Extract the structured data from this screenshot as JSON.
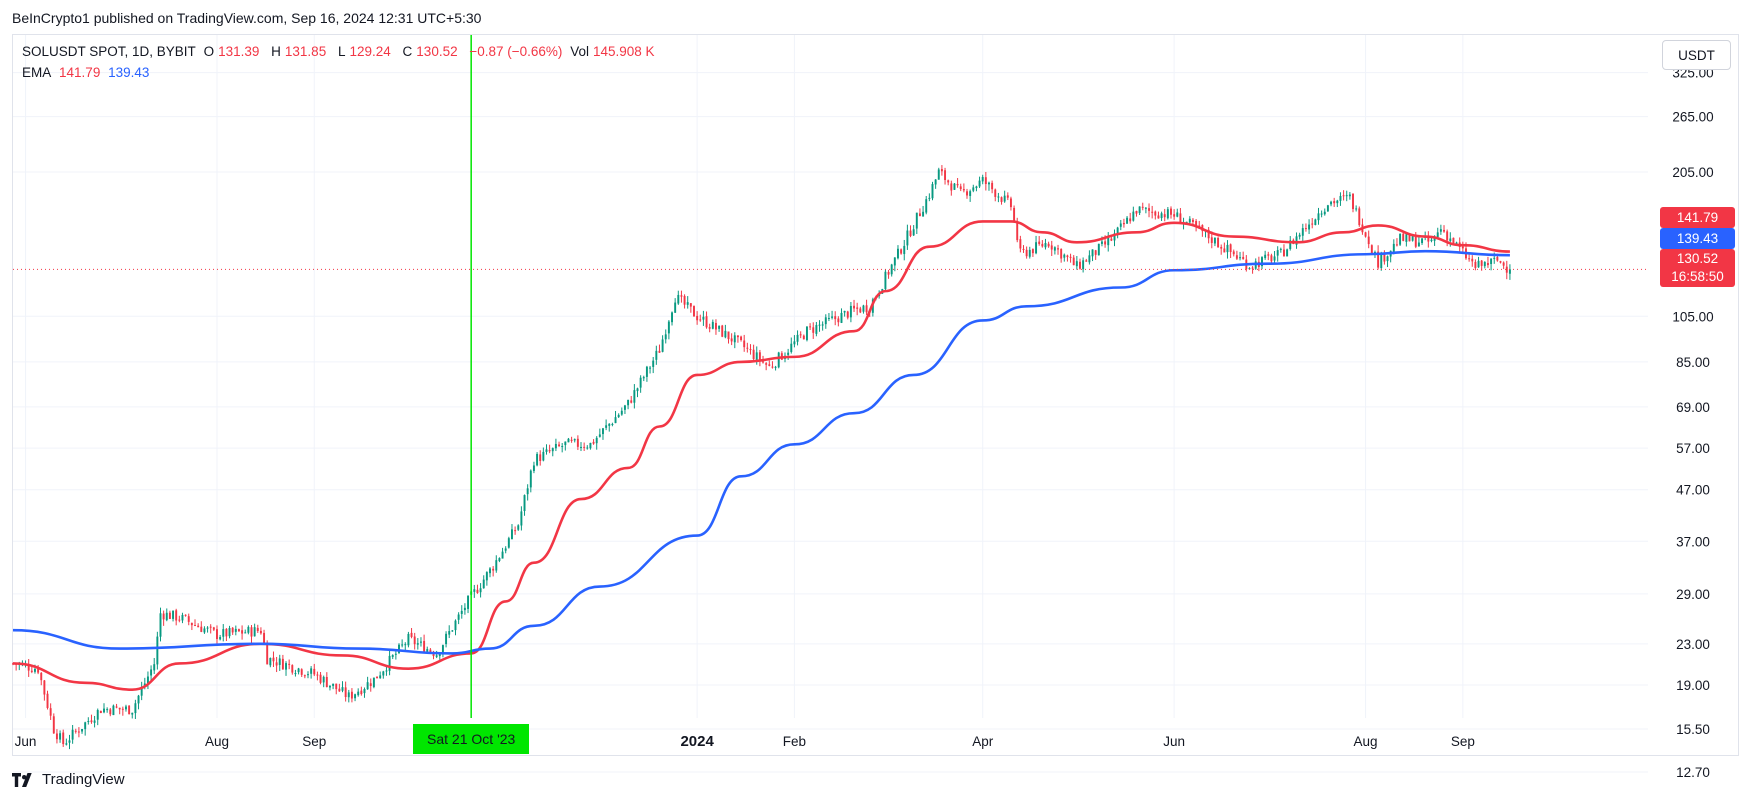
{
  "publisher_line": "BeInCrypto1 published on TradingView.com, Sep 16, 2024 12:31 UTC+5:30",
  "legend": {
    "symbol": "SOLUSDT SPOT, 1D, BYBIT",
    "o_label": "O",
    "o_value": "131.39",
    "h_label": "H",
    "h_value": "131.85",
    "l_label": "L",
    "l_value": "129.24",
    "c_label": "C",
    "c_value": "130.52",
    "change": "−0.87 (−0.66%)",
    "vol_label": "Vol",
    "vol_value": "145.908 K",
    "ema_label": "EMA",
    "ema_fast": "141.79",
    "ema_slow": "139.43"
  },
  "currency_button": "USDT",
  "footer_brand": "TradingView",
  "price_tags": {
    "ema_fast": "141.79",
    "ema_slow": "139.43",
    "last": "130.52",
    "countdown": "16:58:50"
  },
  "crosshair_label": "Sat 21 Oct '23",
  "colors": {
    "up": "#089981",
    "down": "#f23645",
    "ema_fast": "#f23645",
    "ema_slow": "#2962ff",
    "crosshair": "#00e600",
    "grid": "#f0f3fa"
  },
  "chart_data": {
    "type": "candlestick",
    "scale": "log",
    "y_axis_side": "right",
    "y_ticks": [
      325,
      265,
      205,
      105,
      85,
      69,
      57,
      47,
      37,
      29,
      23,
      19,
      15.5,
      12.7
    ],
    "y_tick_labels": [
      "325.00",
      "265.00",
      "205.00",
      "105.00",
      "85.00",
      "69.00",
      "57.00",
      "47.00",
      "37.00",
      "29.00",
      "23.00",
      "19.00",
      "15.50",
      "12.70"
    ],
    "x_ticks": [
      {
        "label": "Jun",
        "date": "2023-06-01",
        "bold": false
      },
      {
        "label": "Aug",
        "date": "2023-08-01",
        "bold": false
      },
      {
        "label": "Sep",
        "date": "2023-09-01",
        "bold": false
      },
      {
        "label": "2024",
        "date": "2024-01-01",
        "bold": true
      },
      {
        "label": "Feb",
        "date": "2024-02-01",
        "bold": false
      },
      {
        "label": "Apr",
        "date": "2024-04-01",
        "bold": false
      },
      {
        "label": "Jun",
        "date": "2024-06-01",
        "bold": false
      },
      {
        "label": "Aug",
        "date": "2024-08-01",
        "bold": false
      },
      {
        "label": "Sep",
        "date": "2024-09-01",
        "bold": false
      }
    ],
    "x_range": [
      "2023-05-28",
      "2024-10-30"
    ],
    "crosshair_date": "2023-10-21",
    "last_price": 130.52,
    "price_path": [
      [
        "2023-05-28",
        21
      ],
      [
        "2023-06-05",
        20.5
      ],
      [
        "2023-06-10",
        15.5
      ],
      [
        "2023-06-13",
        14.5
      ],
      [
        "2023-06-25",
        17
      ],
      [
        "2023-07-05",
        17
      ],
      [
        "2023-07-12",
        21
      ],
      [
        "2023-07-14",
        26.5
      ],
      [
        "2023-07-20",
        26
      ],
      [
        "2023-08-01",
        24
      ],
      [
        "2023-08-15",
        24.5
      ],
      [
        "2023-08-17",
        21.5
      ],
      [
        "2023-09-01",
        20
      ],
      [
        "2023-09-12",
        18
      ],
      [
        "2023-09-20",
        19.5
      ],
      [
        "2023-10-01",
        23.5
      ],
      [
        "2023-10-10",
        22
      ],
      [
        "2023-10-20",
        28
      ],
      [
        "2023-10-28",
        33
      ],
      [
        "2023-11-05",
        40
      ],
      [
        "2023-11-10",
        54
      ],
      [
        "2023-11-20",
        58
      ],
      [
        "2023-11-28",
        58
      ],
      [
        "2023-12-10",
        70
      ],
      [
        "2023-12-20",
        90
      ],
      [
        "2023-12-25",
        115
      ],
      [
        "2024-01-01",
        105
      ],
      [
        "2024-01-15",
        92
      ],
      [
        "2024-01-24",
        83
      ],
      [
        "2024-02-05",
        98
      ],
      [
        "2024-02-20",
        108
      ],
      [
        "2024-02-25",
        110
      ],
      [
        "2024-03-05",
        140
      ],
      [
        "2024-03-15",
        185
      ],
      [
        "2024-03-18",
        205
      ],
      [
        "2024-03-25",
        185
      ],
      [
        "2024-04-01",
        197
      ],
      [
        "2024-04-10",
        175
      ],
      [
        "2024-04-13",
        140
      ],
      [
        "2024-04-22",
        148
      ],
      [
        "2024-05-01",
        132
      ],
      [
        "2024-05-12",
        150
      ],
      [
        "2024-05-20",
        172
      ],
      [
        "2024-06-01",
        168
      ],
      [
        "2024-06-10",
        155
      ],
      [
        "2024-06-25",
        133
      ],
      [
        "2024-07-05",
        140
      ],
      [
        "2024-07-20",
        178
      ],
      [
        "2024-07-27",
        182
      ],
      [
        "2024-08-05",
        135
      ],
      [
        "2024-08-12",
        150
      ],
      [
        "2024-08-22",
        148
      ],
      [
        "2024-08-25",
        158
      ],
      [
        "2024-09-05",
        132
      ],
      [
        "2024-09-12",
        136
      ],
      [
        "2024-09-16",
        130.52
      ]
    ],
    "series": [
      {
        "name": "EMA 141.79",
        "color": "#f23645",
        "points": [
          [
            "2023-05-28",
            21
          ],
          [
            "2023-06-20",
            19.2
          ],
          [
            "2023-07-05",
            18.6
          ],
          [
            "2023-07-20",
            21
          ],
          [
            "2023-08-15",
            23
          ],
          [
            "2023-09-10",
            21.8
          ],
          [
            "2023-10-01",
            20.5
          ],
          [
            "2023-10-21",
            22
          ],
          [
            "2023-11-01",
            28
          ],
          [
            "2023-11-10",
            33.5
          ],
          [
            "2023-11-25",
            45
          ],
          [
            "2023-12-10",
            52
          ],
          [
            "2023-12-20",
            63
          ],
          [
            "2024-01-01",
            80
          ],
          [
            "2024-01-15",
            85
          ],
          [
            "2024-02-01",
            87
          ],
          [
            "2024-02-20",
            98
          ],
          [
            "2024-03-01",
            118
          ],
          [
            "2024-03-15",
            145
          ],
          [
            "2024-04-01",
            163
          ],
          [
            "2024-04-10",
            163
          ],
          [
            "2024-04-20",
            155
          ],
          [
            "2024-05-01",
            148
          ],
          [
            "2024-05-20",
            155
          ],
          [
            "2024-06-01",
            162
          ],
          [
            "2024-06-20",
            152
          ],
          [
            "2024-07-10",
            148
          ],
          [
            "2024-07-25",
            155
          ],
          [
            "2024-08-05",
            160
          ],
          [
            "2024-08-20",
            152
          ],
          [
            "2024-09-01",
            146
          ],
          [
            "2024-09-16",
            141.79
          ]
        ]
      },
      {
        "name": "EMA 139.43",
        "color": "#2962ff",
        "points": [
          [
            "2023-05-28",
            24.5
          ],
          [
            "2023-07-01",
            22.5
          ],
          [
            "2023-08-15",
            23
          ],
          [
            "2023-09-15",
            22.5
          ],
          [
            "2023-10-15",
            22
          ],
          [
            "2023-10-27",
            22.5
          ],
          [
            "2023-11-10",
            25
          ],
          [
            "2023-12-01",
            30
          ],
          [
            "2024-01-01",
            38
          ],
          [
            "2024-01-15",
            50
          ],
          [
            "2024-02-01",
            58
          ],
          [
            "2024-02-20",
            67
          ],
          [
            "2024-03-10",
            80
          ],
          [
            "2024-04-01",
            103
          ],
          [
            "2024-04-15",
            110
          ],
          [
            "2024-05-15",
            120
          ],
          [
            "2024-06-01",
            130
          ],
          [
            "2024-07-01",
            134
          ],
          [
            "2024-08-01",
            140
          ],
          [
            "2024-08-20",
            142
          ],
          [
            "2024-09-16",
            139.43
          ]
        ]
      }
    ]
  }
}
